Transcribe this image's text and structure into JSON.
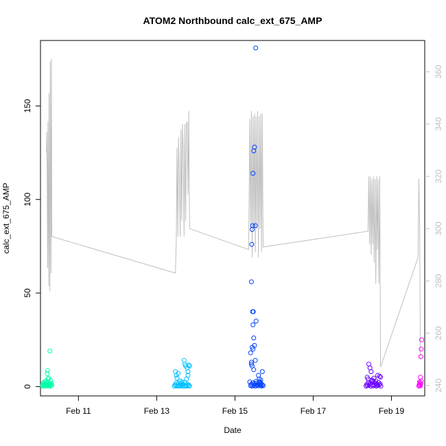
{
  "chart_data": {
    "type": "scatter",
    "title": "ATOM2 Northbound calc_ext_675_AMP",
    "xlabel": "Date",
    "ylabel": "calc_ext_675_AMP",
    "xlim": [
      10.03,
      19.85
    ],
    "ylim": [
      -5,
      185
    ],
    "y2lim": [
      236,
      372
    ],
    "x_ticks": [
      {
        "value": 11,
        "label": "Feb 11"
      },
      {
        "value": 13,
        "label": "Feb 13"
      },
      {
        "value": 15,
        "label": "Feb 15"
      },
      {
        "value": 17,
        "label": "Feb 17"
      },
      {
        "value": 19,
        "label": "Feb 19"
      }
    ],
    "y_ticks": [
      0,
      50,
      100,
      150
    ],
    "y2_ticks": [
      240,
      260,
      280,
      300,
      320,
      340,
      360
    ],
    "grid": false,
    "legend": "none",
    "secondary_line": {
      "color": "#bebebe",
      "points": [
        [
          10.18,
          329
        ],
        [
          10.19,
          337
        ],
        [
          10.2,
          322
        ],
        [
          10.21,
          285
        ],
        [
          10.22,
          341
        ],
        [
          10.23,
          312
        ],
        [
          10.24,
          278
        ],
        [
          10.25,
          352
        ],
        [
          10.26,
          300
        ],
        [
          10.27,
          276
        ],
        [
          10.28,
          364
        ],
        [
          10.29,
          330
        ],
        [
          10.3,
          283
        ],
        [
          10.31,
          365
        ],
        [
          10.32,
          297
        ],
        [
          13.48,
          283
        ],
        [
          13.5,
          296
        ],
        [
          13.52,
          331
        ],
        [
          13.54,
          297
        ],
        [
          13.56,
          335
        ],
        [
          13.58,
          320
        ],
        [
          13.6,
          297
        ],
        [
          13.62,
          338
        ],
        [
          13.64,
          303
        ],
        [
          13.66,
          340
        ],
        [
          13.68,
          330
        ],
        [
          13.7,
          297
        ],
        [
          13.72,
          340
        ],
        [
          13.74,
          303
        ],
        [
          13.76,
          340
        ],
        [
          13.78,
          341
        ],
        [
          13.8,
          313
        ],
        [
          13.82,
          345
        ],
        [
          13.84,
          300
        ],
        [
          15.35,
          292
        ],
        [
          15.38,
          342
        ],
        [
          15.4,
          300
        ],
        [
          15.42,
          345
        ],
        [
          15.44,
          289
        ],
        [
          15.46,
          343
        ],
        [
          15.48,
          300
        ],
        [
          15.5,
          344
        ],
        [
          15.52,
          291
        ],
        [
          15.54,
          343
        ],
        [
          15.56,
          300
        ],
        [
          15.58,
          345
        ],
        [
          15.6,
          289
        ],
        [
          15.62,
          343
        ],
        [
          15.64,
          300
        ],
        [
          15.66,
          344
        ],
        [
          15.68,
          291
        ],
        [
          15.7,
          344
        ],
        [
          15.72,
          293
        ],
        [
          18.4,
          299
        ],
        [
          18.42,
          320
        ],
        [
          18.44,
          294
        ],
        [
          18.46,
          320
        ],
        [
          18.48,
          290
        ],
        [
          18.5,
          319
        ],
        [
          18.52,
          294
        ],
        [
          18.54,
          320
        ],
        [
          18.56,
          287
        ],
        [
          18.58,
          319
        ],
        [
          18.6,
          279
        ],
        [
          18.62,
          320
        ],
        [
          18.64,
          292
        ],
        [
          18.66,
          319
        ],
        [
          18.68,
          279
        ],
        [
          18.7,
          320
        ],
        [
          18.72,
          247
        ],
        [
          19.68,
          289
        ],
        [
          19.7,
          319
        ],
        [
          19.72,
          300
        ],
        [
          19.74,
          250
        ]
      ]
    },
    "series": [
      {
        "color": "#00ffaa",
        "points": [
          [
            10.08,
            0.3
          ],
          [
            10.09,
            1.2
          ],
          [
            10.1,
            0.5
          ],
          [
            10.11,
            2.1
          ],
          [
            10.12,
            0.8
          ],
          [
            10.13,
            1.5
          ],
          [
            10.14,
            0.2
          ],
          [
            10.15,
            3
          ],
          [
            10.16,
            1
          ],
          [
            10.17,
            0.4
          ],
          [
            10.18,
            2.5
          ],
          [
            10.19,
            0.7
          ],
          [
            10.2,
            1.8
          ],
          [
            10.21,
            0.3
          ],
          [
            10.22,
            4
          ],
          [
            10.23,
            1.1
          ],
          [
            10.24,
            0.6
          ],
          [
            10.25,
            2.2
          ],
          [
            10.26,
            0.9
          ],
          [
            10.27,
            1.4
          ],
          [
            10.28,
            0.2
          ],
          [
            10.29,
            3.2
          ],
          [
            10.3,
            0.5
          ],
          [
            10.31,
            1.7
          ],
          [
            10.32,
            0.8
          ],
          [
            10.2,
            7
          ],
          [
            10.21,
            8.5
          ],
          [
            10.24,
            4.5
          ],
          [
            10.27,
            19
          ]
        ]
      },
      {
        "color": "#00bfff",
        "points": [
          [
            13.45,
            0.2
          ],
          [
            13.47,
            1
          ],
          [
            13.49,
            0.5
          ],
          [
            13.5,
            2
          ],
          [
            13.52,
            0.3
          ],
          [
            13.54,
            1.4
          ],
          [
            13.56,
            0.6
          ],
          [
            13.58,
            0.2
          ],
          [
            13.6,
            1.8
          ],
          [
            13.62,
            0.4
          ],
          [
            13.64,
            0.9
          ],
          [
            13.66,
            0.2
          ],
          [
            13.68,
            1.1
          ],
          [
            13.7,
            0.3
          ],
          [
            13.72,
            2.2
          ],
          [
            13.74,
            0.6
          ],
          [
            13.76,
            0.2
          ],
          [
            13.78,
            1.3
          ],
          [
            13.8,
            0.5
          ],
          [
            13.82,
            0.8
          ],
          [
            13.84,
            0.3
          ],
          [
            13.48,
            8
          ],
          [
            13.5,
            6
          ],
          [
            13.52,
            4.5
          ],
          [
            13.55,
            7
          ],
          [
            13.6,
            3
          ],
          [
            13.65,
            2.5
          ],
          [
            13.7,
            14
          ],
          [
            13.72,
            12
          ],
          [
            13.74,
            11
          ],
          [
            13.78,
            10
          ],
          [
            13.8,
            8
          ],
          [
            13.82,
            11.5
          ],
          [
            13.84,
            11
          ],
          [
            13.76,
            4
          ],
          [
            13.8,
            6
          ]
        ]
      },
      {
        "color": "#0040ff",
        "points": [
          [
            15.4,
            0.5
          ],
          [
            15.42,
            1.2
          ],
          [
            15.44,
            0.3
          ],
          [
            15.46,
            2
          ],
          [
            15.48,
            0.7
          ],
          [
            15.5,
            1.5
          ],
          [
            15.52,
            0.2
          ],
          [
            15.54,
            2.8
          ],
          [
            15.56,
            0.6
          ],
          [
            15.58,
            1.1
          ],
          [
            15.6,
            0.4
          ],
          [
            15.62,
            2.4
          ],
          [
            15.64,
            0.9
          ],
          [
            15.66,
            1.6
          ],
          [
            15.68,
            0.3
          ],
          [
            15.7,
            1
          ],
          [
            15.72,
            0.5
          ],
          [
            15.38,
            2.5
          ],
          [
            15.55,
            1.9
          ],
          [
            15.65,
            0.8
          ],
          [
            15.4,
            18
          ],
          [
            15.42,
            13
          ],
          [
            15.44,
            21
          ],
          [
            15.46,
            20
          ],
          [
            15.48,
            26
          ],
          [
            15.5,
            22
          ],
          [
            15.52,
            14
          ],
          [
            15.54,
            35
          ],
          [
            15.46,
            33
          ],
          [
            15.42,
            12
          ],
          [
            15.44,
            11
          ],
          [
            15.48,
            9
          ],
          [
            15.6,
            6
          ],
          [
            15.62,
            4
          ],
          [
            15.7,
            8
          ],
          [
            15.64,
            2.5
          ],
          [
            15.66,
            3.5
          ],
          [
            15.45,
            40
          ],
          [
            15.47,
            40
          ],
          [
            15.42,
            56
          ],
          [
            15.43,
            76
          ],
          [
            15.44,
            84
          ],
          [
            15.45,
            86
          ],
          [
            15.52,
            86
          ],
          [
            15.46,
            114
          ],
          [
            15.48,
            126
          ],
          [
            15.5,
            128
          ],
          [
            15.53,
            181
          ]
        ]
      },
      {
        "color": "#6a00ff",
        "points": [
          [
            18.35,
            0.3
          ],
          [
            18.37,
            1.2
          ],
          [
            18.39,
            0.5
          ],
          [
            18.41,
            2.1
          ],
          [
            18.43,
            0.8
          ],
          [
            18.45,
            1.5
          ],
          [
            18.47,
            0.2
          ],
          [
            18.49,
            3
          ],
          [
            18.51,
            1
          ],
          [
            18.53,
            0.4
          ],
          [
            18.55,
            2.5
          ],
          [
            18.57,
            0.7
          ],
          [
            18.59,
            1.8
          ],
          [
            18.61,
            0.3
          ],
          [
            18.63,
            1.1
          ],
          [
            18.65,
            0.6
          ],
          [
            18.67,
            2.2
          ],
          [
            18.69,
            0.9
          ],
          [
            18.71,
            1.4
          ],
          [
            18.73,
            0.2
          ],
          [
            18.38,
            5
          ],
          [
            18.4,
            4
          ],
          [
            18.42,
            12
          ],
          [
            18.45,
            10
          ],
          [
            18.48,
            8
          ],
          [
            18.5,
            3.5
          ],
          [
            18.55,
            4.5
          ],
          [
            18.6,
            3
          ],
          [
            18.65,
            6
          ],
          [
            18.7,
            5.5
          ],
          [
            18.72,
            5
          ],
          [
            18.52,
            2.8
          ]
        ]
      },
      {
        "color": "#ff00ff",
        "points": [
          [
            19.7,
            0.3
          ],
          [
            19.71,
            1
          ],
          [
            19.72,
            0.6
          ],
          [
            19.73,
            2
          ],
          [
            19.74,
            0.4
          ],
          [
            19.75,
            1.5
          ],
          [
            19.76,
            3
          ],
          [
            19.72,
            2.5
          ],
          [
            19.74,
            5
          ],
          [
            19.75,
            16
          ],
          [
            19.76,
            20
          ],
          [
            19.77,
            25
          ]
        ]
      }
    ]
  }
}
